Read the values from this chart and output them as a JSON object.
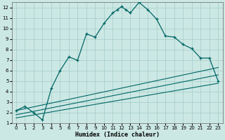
{
  "xlabel": "Humidex (Indice chaleur)",
  "bg_color": "#cce8e4",
  "grid_color": "#aacfcb",
  "line_color": "#006666",
  "xlim": [
    -0.5,
    23.5
  ],
  "ylim": [
    1,
    12.5
  ],
  "xticks": [
    0,
    1,
    2,
    3,
    4,
    5,
    6,
    7,
    8,
    9,
    10,
    11,
    12,
    13,
    14,
    15,
    16,
    17,
    18,
    19,
    20,
    21,
    22,
    23
  ],
  "yticks": [
    1,
    2,
    3,
    4,
    5,
    6,
    7,
    8,
    9,
    10,
    11,
    12
  ],
  "curve_x": [
    0,
    1,
    2,
    3,
    4,
    5,
    6,
    7,
    8,
    9,
    10,
    11,
    11.5,
    12,
    12.5,
    13,
    14,
    15,
    16,
    17,
    18,
    19,
    20,
    21,
    22,
    23
  ],
  "curve_y": [
    2.2,
    2.6,
    2.0,
    1.3,
    4.3,
    6.0,
    7.3,
    7.0,
    9.5,
    9.2,
    10.5,
    11.5,
    11.8,
    12.1,
    11.8,
    11.5,
    12.5,
    11.8,
    10.9,
    9.3,
    9.2,
    8.5,
    8.1,
    7.2,
    7.2,
    5.0
  ],
  "line1_start_x": 0,
  "line1_start_y": 2.2,
  "line1_end_x": 23,
  "line1_end_y": 6.3,
  "line2_start_x": 0,
  "line2_start_y": 1.8,
  "line2_end_x": 23,
  "line2_end_y": 5.6,
  "line3_start_x": 0,
  "line3_start_y": 1.5,
  "line3_end_x": 23,
  "line3_end_y": 4.8,
  "xlabel_fontsize": 6,
  "tick_fontsize": 5
}
